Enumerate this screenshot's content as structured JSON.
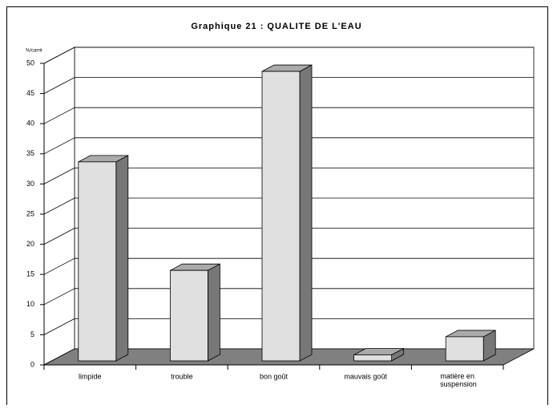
{
  "chart_data": {
    "type": "bar3d",
    "title": "Graphique 21 : QUALITE DE L'EAU",
    "y_axis_label": "%/carré",
    "categories": [
      "limpide",
      "trouble",
      "bon goût",
      "mauvais goût",
      "matière en suspension"
    ],
    "values": [
      33,
      15,
      48,
      1,
      4
    ],
    "color": "#e0e0e0",
    "ylim": [
      0,
      50
    ],
    "yticks": [
      0,
      5,
      10,
      15,
      20,
      25,
      30,
      35,
      40,
      45,
      50
    ],
    "grid": true
  }
}
